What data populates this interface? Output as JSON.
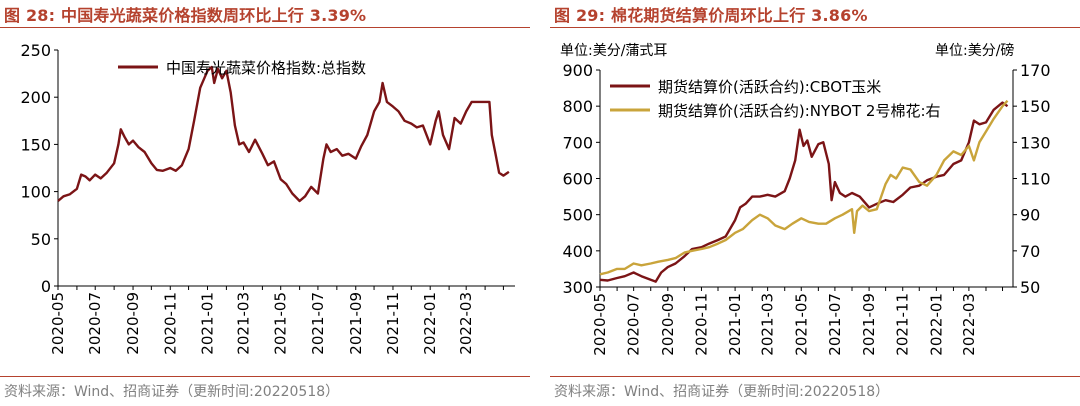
{
  "source_text": "资料来源：Wind、招商证券（更新时间:20220518）",
  "colors": {
    "title": "#b5422e",
    "maroon": "#7b1416",
    "gold": "#c9a43b",
    "source": "#808080"
  },
  "chart_data": [
    {
      "type": "line",
      "title": "图 28:  中国寿光蔬菜价格指数周环比上行 3.39%",
      "xlabel": "",
      "ylabel": "",
      "ylim": [
        0,
        250
      ],
      "yticks": [
        0,
        50,
        100,
        150,
        200,
        250
      ],
      "x_tick_labels": [
        "2020-05",
        "2020-07",
        "2020-09",
        "2020-11",
        "2021-01",
        "2021-03",
        "2021-05",
        "2021-07",
        "2021-09",
        "2021-11",
        "2022-01",
        "2022-03"
      ],
      "legend": [
        "中国寿光蔬菜价格指数:总指数"
      ],
      "legend_position": "top-center",
      "series": [
        {
          "name": "中国寿光蔬菜价格指数:总指数",
          "color": "#7b1416",
          "points": [
            [
              "2020-05-01",
              90
            ],
            [
              "2020-05-10",
              95
            ],
            [
              "2020-05-20",
              97
            ],
            [
              "2020-06-01",
              103
            ],
            [
              "2020-06-08",
              118
            ],
            [
              "2020-06-15",
              116
            ],
            [
              "2020-06-22",
              112
            ],
            [
              "2020-07-01",
              118
            ],
            [
              "2020-07-10",
              114
            ],
            [
              "2020-07-20",
              120
            ],
            [
              "2020-08-01",
              130
            ],
            [
              "2020-08-08",
              150
            ],
            [
              "2020-08-12",
              166
            ],
            [
              "2020-08-18",
              158
            ],
            [
              "2020-08-25",
              150
            ],
            [
              "2020-09-01",
              154
            ],
            [
              "2020-09-10",
              147
            ],
            [
              "2020-09-20",
              142
            ],
            [
              "2020-10-01",
              130
            ],
            [
              "2020-10-10",
              123
            ],
            [
              "2020-10-20",
              122
            ],
            [
              "2020-11-01",
              125
            ],
            [
              "2020-11-10",
              122
            ],
            [
              "2020-11-20",
              128
            ],
            [
              "2020-12-01",
              145
            ],
            [
              "2020-12-10",
              175
            ],
            [
              "2020-12-20",
              210
            ],
            [
              "2021-01-01",
              228
            ],
            [
              "2021-01-08",
              232
            ],
            [
              "2021-01-12",
              215
            ],
            [
              "2021-01-18",
              230
            ],
            [
              "2021-01-25",
              220
            ],
            [
              "2021-02-01",
              228
            ],
            [
              "2021-02-08",
              205
            ],
            [
              "2021-02-15",
              170
            ],
            [
              "2021-02-22",
              150
            ],
            [
              "2021-03-01",
              152
            ],
            [
              "2021-03-10",
              142
            ],
            [
              "2021-03-20",
              155
            ],
            [
              "2021-04-01",
              140
            ],
            [
              "2021-04-10",
              128
            ],
            [
              "2021-04-20",
              132
            ],
            [
              "2021-05-01",
              113
            ],
            [
              "2021-05-10",
              108
            ],
            [
              "2021-05-20",
              98
            ],
            [
              "2021-06-01",
              90
            ],
            [
              "2021-06-10",
              95
            ],
            [
              "2021-06-20",
              105
            ],
            [
              "2021-07-01",
              98
            ],
            [
              "2021-07-10",
              135
            ],
            [
              "2021-07-15",
              150
            ],
            [
              "2021-07-22",
              142
            ],
            [
              "2021-08-01",
              145
            ],
            [
              "2021-08-10",
              138
            ],
            [
              "2021-08-20",
              140
            ],
            [
              "2021-09-01",
              135
            ],
            [
              "2021-09-10",
              148
            ],
            [
              "2021-09-20",
              160
            ],
            [
              "2021-10-01",
              185
            ],
            [
              "2021-10-10",
              195
            ],
            [
              "2021-10-15",
              215
            ],
            [
              "2021-10-22",
              195
            ],
            [
              "2021-11-01",
              190
            ],
            [
              "2021-11-10",
              185
            ],
            [
              "2021-11-20",
              175
            ],
            [
              "2021-12-01",
              172
            ],
            [
              "2021-12-10",
              168
            ],
            [
              "2021-12-20",
              170
            ],
            [
              "2022-01-01",
              150
            ],
            [
              "2022-01-10",
              175
            ],
            [
              "2022-01-15",
              185
            ],
            [
              "2022-01-22",
              160
            ],
            [
              "2022-02-01",
              145
            ],
            [
              "2022-02-10",
              178
            ],
            [
              "2022-02-20",
              172
            ],
            [
              "2022-03-01",
              185
            ],
            [
              "2022-03-10",
              195
            ],
            [
              "2022-03-20",
              195
            ],
            [
              "2022-04-01",
              195
            ],
            [
              "2022-04-08",
              195
            ],
            [
              "2022-04-12",
              160
            ],
            [
              "2022-04-18",
              140
            ],
            [
              "2022-04-24",
              120
            ],
            [
              "2022-05-01",
              117
            ],
            [
              "2022-05-10",
              121
            ]
          ]
        }
      ]
    },
    {
      "type": "line",
      "title": "图 29:  棉花期货结算价周环比上行 3.86%",
      "xlabel": "",
      "ylabel_left": "单位:美分/蒲式耳",
      "ylabel_right": "单位:美分/磅",
      "ylim_left": [
        300,
        900
      ],
      "ylim_right": [
        50,
        170
      ],
      "yticks_left": [
        300,
        400,
        500,
        600,
        700,
        800,
        900
      ],
      "yticks_right": [
        50,
        70,
        90,
        110,
        130,
        150,
        170
      ],
      "x_tick_labels": [
        "2020-05",
        "2020-07",
        "2020-09",
        "2020-11",
        "2021-01",
        "2021-03",
        "2021-05",
        "2021-07",
        "2021-09",
        "2021-11",
        "2022-01",
        "2022-03"
      ],
      "legend_position": "top-left",
      "series": [
        {
          "name": "期货结算价(活跃合约):CBOT玉米",
          "axis": "left",
          "color": "#7b1416",
          "points": [
            [
              "2020-05-01",
              320
            ],
            [
              "2020-05-15",
              318
            ],
            [
              "2020-06-01",
              325
            ],
            [
              "2020-06-15",
              330
            ],
            [
              "2020-07-01",
              340
            ],
            [
              "2020-07-15",
              330
            ],
            [
              "2020-08-01",
              320
            ],
            [
              "2020-08-10",
              315
            ],
            [
              "2020-08-20",
              340
            ],
            [
              "2020-09-01",
              355
            ],
            [
              "2020-09-15",
              365
            ],
            [
              "2020-10-01",
              385
            ],
            [
              "2020-10-15",
              405
            ],
            [
              "2020-11-01",
              410
            ],
            [
              "2020-11-15",
              420
            ],
            [
              "2020-12-01",
              430
            ],
            [
              "2020-12-15",
              440
            ],
            [
              "2021-01-01",
              485
            ],
            [
              "2021-01-10",
              520
            ],
            [
              "2021-01-20",
              530
            ],
            [
              "2021-02-01",
              550
            ],
            [
              "2021-02-15",
              550
            ],
            [
              "2021-03-01",
              555
            ],
            [
              "2021-03-15",
              550
            ],
            [
              "2021-04-01",
              565
            ],
            [
              "2021-04-10",
              600
            ],
            [
              "2021-04-20",
              650
            ],
            [
              "2021-04-28",
              735
            ],
            [
              "2021-05-05",
              690
            ],
            [
              "2021-05-12",
              705
            ],
            [
              "2021-05-20",
              660
            ],
            [
              "2021-06-01",
              695
            ],
            [
              "2021-06-10",
              700
            ],
            [
              "2021-06-20",
              640
            ],
            [
              "2021-06-25",
              540
            ],
            [
              "2021-07-01",
              590
            ],
            [
              "2021-07-10",
              560
            ],
            [
              "2021-07-20",
              550
            ],
            [
              "2021-08-01",
              560
            ],
            [
              "2021-08-15",
              550
            ],
            [
              "2021-09-01",
              520
            ],
            [
              "2021-09-15",
              530
            ],
            [
              "2021-10-01",
              540
            ],
            [
              "2021-10-15",
              535
            ],
            [
              "2021-11-01",
              555
            ],
            [
              "2021-11-15",
              575
            ],
            [
              "2021-12-01",
              580
            ],
            [
              "2021-12-15",
              595
            ],
            [
              "2022-01-01",
              605
            ],
            [
              "2022-01-15",
              610
            ],
            [
              "2022-02-01",
              640
            ],
            [
              "2022-02-15",
              650
            ],
            [
              "2022-03-01",
              700
            ],
            [
              "2022-03-10",
              760
            ],
            [
              "2022-03-20",
              750
            ],
            [
              "2022-04-01",
              755
            ],
            [
              "2022-04-15",
              790
            ],
            [
              "2022-05-01",
              810
            ],
            [
              "2022-05-10",
              800
            ]
          ]
        },
        {
          "name": "期货结算价(活跃合约):NYBOT 2号棉花:右",
          "axis": "right",
          "color": "#c9a43b",
          "points": [
            [
              "2020-05-01",
              57
            ],
            [
              "2020-05-15",
              58
            ],
            [
              "2020-06-01",
              60
            ],
            [
              "2020-06-15",
              60
            ],
            [
              "2020-07-01",
              63
            ],
            [
              "2020-07-15",
              62
            ],
            [
              "2020-08-01",
              63
            ],
            [
              "2020-08-15",
              64
            ],
            [
              "2020-09-01",
              65
            ],
            [
              "2020-09-15",
              66
            ],
            [
              "2020-10-01",
              69
            ],
            [
              "2020-10-15",
              70
            ],
            [
              "2020-11-01",
              71
            ],
            [
              "2020-11-15",
              72
            ],
            [
              "2020-12-01",
              74
            ],
            [
              "2020-12-15",
              76
            ],
            [
              "2021-01-01",
              80
            ],
            [
              "2021-01-15",
              82
            ],
            [
              "2021-02-01",
              87
            ],
            [
              "2021-02-15",
              90
            ],
            [
              "2021-03-01",
              88
            ],
            [
              "2021-03-15",
              84
            ],
            [
              "2021-04-01",
              82
            ],
            [
              "2021-04-15",
              85
            ],
            [
              "2021-05-01",
              88
            ],
            [
              "2021-05-15",
              86
            ],
            [
              "2021-06-01",
              85
            ],
            [
              "2021-06-15",
              85
            ],
            [
              "2021-07-01",
              88
            ],
            [
              "2021-07-15",
              90
            ],
            [
              "2021-08-01",
              93
            ],
            [
              "2021-08-05",
              80
            ],
            [
              "2021-08-10",
              92
            ],
            [
              "2021-08-20",
              95
            ],
            [
              "2021-09-01",
              92
            ],
            [
              "2021-09-15",
              93
            ],
            [
              "2021-10-01",
              107
            ],
            [
              "2021-10-10",
              112
            ],
            [
              "2021-10-20",
              110
            ],
            [
              "2021-11-01",
              116
            ],
            [
              "2021-11-15",
              115
            ],
            [
              "2021-12-01",
              108
            ],
            [
              "2021-12-15",
              106
            ],
            [
              "2022-01-01",
              112
            ],
            [
              "2022-01-15",
              120
            ],
            [
              "2022-02-01",
              125
            ],
            [
              "2022-02-15",
              123
            ],
            [
              "2022-03-01",
              128
            ],
            [
              "2022-03-10",
              120
            ],
            [
              "2022-03-20",
              130
            ],
            [
              "2022-04-01",
              136
            ],
            [
              "2022-04-15",
              143
            ],
            [
              "2022-05-01",
              150
            ],
            [
              "2022-05-10",
              153
            ]
          ]
        }
      ]
    }
  ]
}
